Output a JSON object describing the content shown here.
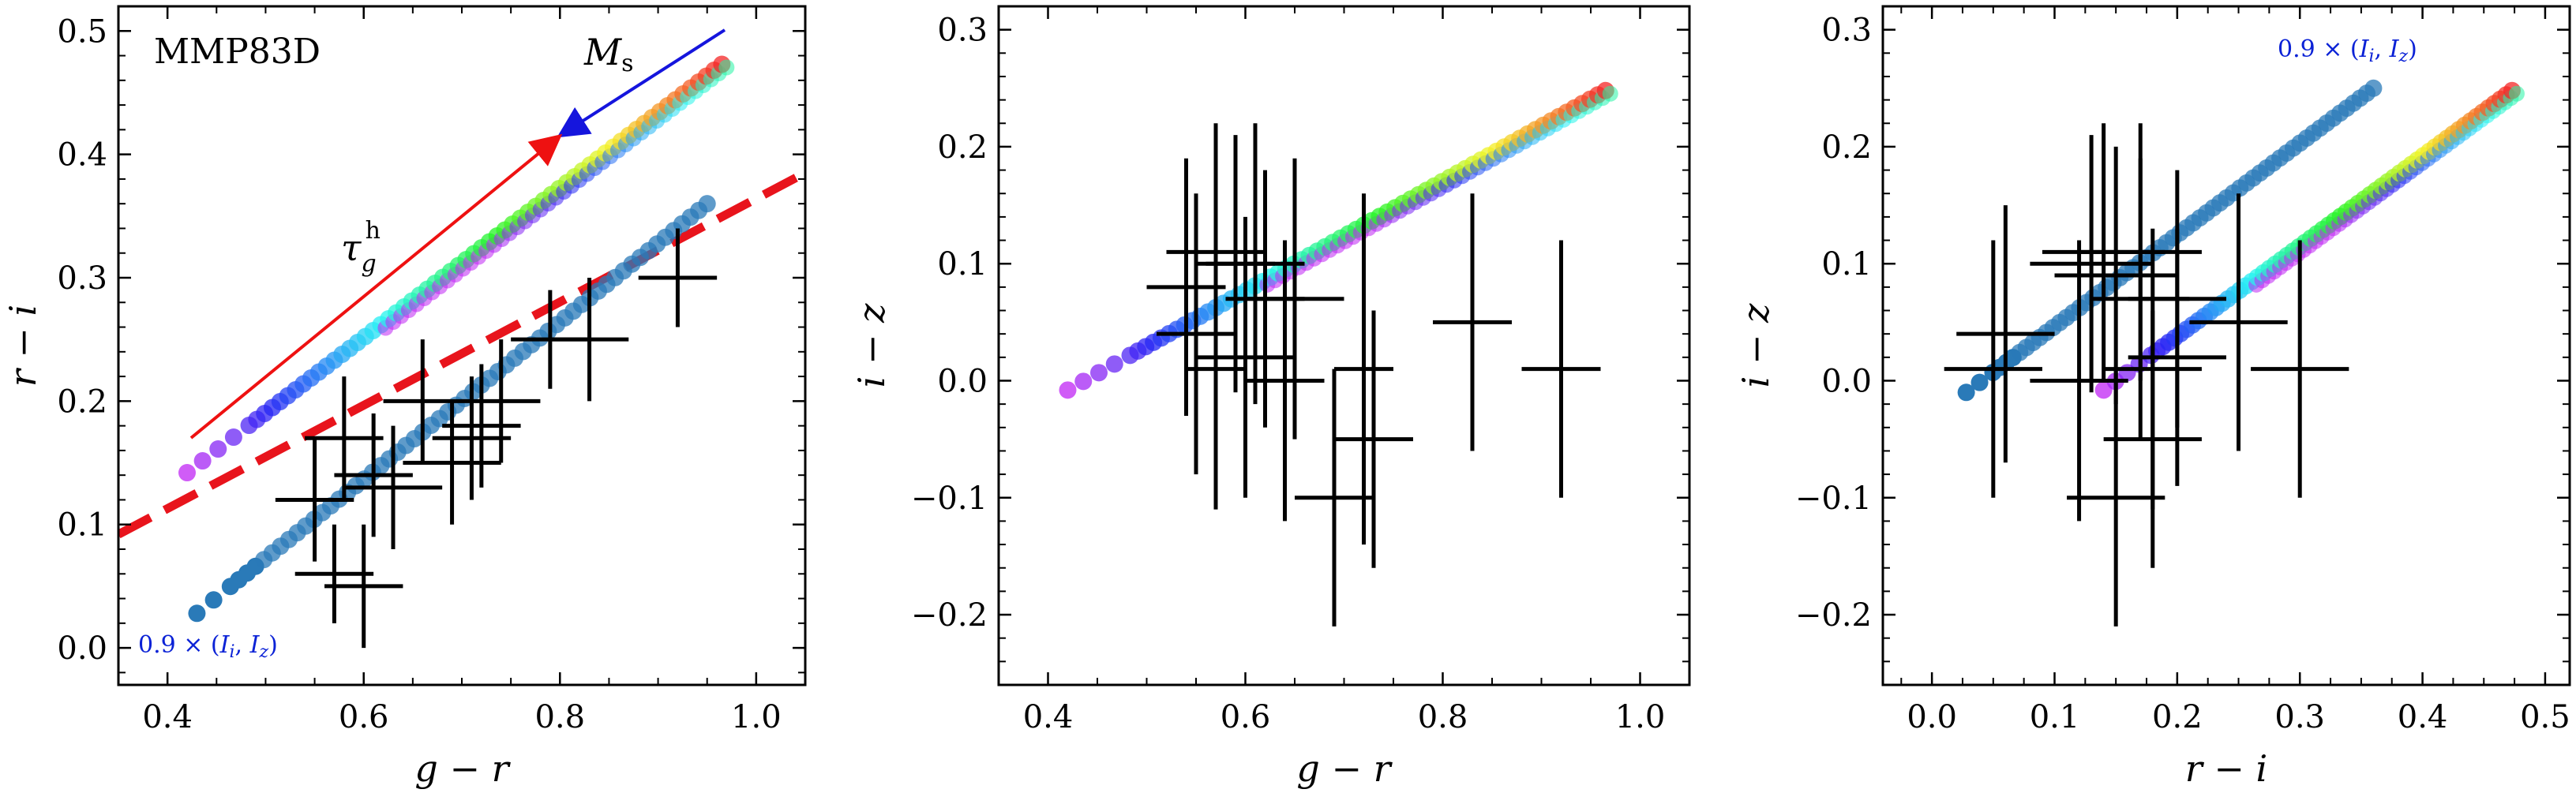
{
  "chart_data": [
    {
      "type": "scatter",
      "panel_tag": "MMP83D",
      "xlabel": "g − r",
      "ylabel": "r − i",
      "xlim": [
        0.35,
        1.05
      ],
      "ylim": [
        -0.03,
        0.52
      ],
      "xticks": [
        0.4,
        0.6,
        0.8,
        1.0
      ],
      "xtick_labels": [
        "0.4",
        "0.6",
        "0.8",
        "1.0"
      ],
      "yticks": [
        0.0,
        0.1,
        0.2,
        0.3,
        0.4,
        0.5
      ],
      "ytick_labels": [
        "0.0",
        "0.1",
        "0.2",
        "0.3",
        "0.4",
        "0.5"
      ],
      "grid": false,
      "annotations": {
        "note_blue": "0.9 × (I_i, I_z)",
        "arrow_ms_label": "M_s",
        "arrow_tau_label": "τ_g^h",
        "dashed_line": {
          "x": [
            0.35,
            1.05
          ],
          "y": [
            0.092,
            0.385
          ]
        }
      },
      "rainbow_band": {
        "x_start": 0.42,
        "x_end": 0.965,
        "y_start": 0.142,
        "y_end": 0.473
      },
      "blue_band": {
        "x_start": 0.43,
        "x_end": 0.95,
        "y_start": 0.028,
        "y_end": 0.36
      },
      "data_points": {
        "x": [
          0.57,
          0.6,
          0.55,
          0.58,
          0.61,
          0.63,
          0.66,
          0.69,
          0.72,
          0.71,
          0.74,
          0.83,
          0.79,
          0.92
        ],
        "y": [
          0.06,
          0.05,
          0.12,
          0.17,
          0.14,
          0.13,
          0.2,
          0.15,
          0.18,
          0.17,
          0.2,
          0.25,
          0.25,
          0.3
        ],
        "xerr": [
          0.04,
          0.04,
          0.04,
          0.04,
          0.04,
          0.05,
          0.04,
          0.05,
          0.04,
          0.04,
          0.04,
          0.04,
          0.04,
          0.04
        ],
        "yerr": [
          0.04,
          0.05,
          0.05,
          0.05,
          0.05,
          0.05,
          0.05,
          0.05,
          0.05,
          0.05,
          0.05,
          0.05,
          0.04,
          0.04
        ]
      }
    },
    {
      "type": "scatter",
      "xlabel": "g − r",
      "ylabel": "i − z",
      "xlim": [
        0.35,
        1.05
      ],
      "ylim": [
        -0.26,
        0.32
      ],
      "xticks": [
        0.4,
        0.6,
        0.8,
        1.0
      ],
      "xtick_labels": [
        "0.4",
        "0.6",
        "0.8",
        "1.0"
      ],
      "yticks": [
        -0.2,
        -0.1,
        0.0,
        0.1,
        0.2,
        0.3
      ],
      "ytick_labels": [
        "−0.2",
        "−0.1",
        "0.0",
        "0.1",
        "0.2",
        "0.3"
      ],
      "grid": false,
      "rainbow_band": {
        "x_start": 0.42,
        "x_end": 0.965,
        "y_start": -0.008,
        "y_end": 0.248
      },
      "data_points": {
        "x": [
          0.54,
          0.57,
          0.55,
          0.59,
          0.61,
          0.6,
          0.57,
          0.62,
          0.65,
          0.64,
          0.72,
          0.73,
          0.69,
          0.83,
          0.92
        ],
        "y": [
          0.08,
          0.11,
          0.04,
          0.1,
          0.1,
          0.02,
          0.01,
          0.07,
          0.07,
          0.0,
          0.01,
          -0.05,
          -0.1,
          0.05,
          0.01
        ],
        "xerr": [
          0.04,
          0.05,
          0.04,
          0.04,
          0.05,
          0.05,
          0.03,
          0.04,
          0.05,
          0.04,
          0.03,
          0.04,
          0.04,
          0.04,
          0.04
        ],
        "yerr": [
          0.11,
          0.11,
          0.12,
          0.11,
          0.12,
          0.12,
          0.12,
          0.11,
          0.12,
          0.12,
          0.15,
          0.11,
          0.11,
          0.11,
          0.11
        ]
      }
    },
    {
      "type": "scatter",
      "note_blue": "0.9 × (I_i, I_z)",
      "xlabel": "r − i",
      "ylabel": "i − z",
      "xlim": [
        -0.04,
        0.52
      ],
      "ylim": [
        -0.26,
        0.32
      ],
      "xticks": [
        0.0,
        0.1,
        0.2,
        0.3,
        0.4,
        0.5
      ],
      "xtick_labels": [
        "0.0",
        "0.1",
        "0.2",
        "0.3",
        "0.4",
        "0.5"
      ],
      "yticks": [
        -0.2,
        -0.1,
        0.0,
        0.1,
        0.2,
        0.3
      ],
      "ytick_labels": [
        "−0.2",
        "−0.1",
        "0.0",
        "0.1",
        "0.2",
        "0.3"
      ],
      "grid": false,
      "rainbow_band": {
        "x_start": 0.14,
        "x_end": 0.473,
        "y_start": -0.008,
        "y_end": 0.248
      },
      "blue_band": {
        "x_start": 0.028,
        "x_end": 0.36,
        "y_start": -0.01,
        "y_end": 0.25
      },
      "data_points": {
        "x": [
          0.06,
          0.05,
          0.13,
          0.14,
          0.15,
          0.12,
          0.17,
          0.17,
          0.2,
          0.18,
          0.18,
          0.25,
          0.3,
          0.2,
          0.15
        ],
        "y": [
          0.04,
          0.01,
          0.1,
          0.11,
          0.09,
          0.0,
          0.07,
          0.11,
          0.07,
          0.01,
          -0.05,
          0.05,
          0.01,
          0.02,
          -0.1
        ],
        "xerr": [
          0.04,
          0.04,
          0.05,
          0.05,
          0.05,
          0.04,
          0.04,
          0.05,
          0.04,
          0.04,
          0.04,
          0.04,
          0.04,
          0.04,
          0.04
        ],
        "yerr": [
          0.11,
          0.11,
          0.11,
          0.11,
          0.11,
          0.12,
          0.12,
          0.11,
          0.11,
          0.12,
          0.11,
          0.11,
          0.11,
          0.11,
          0.11
        ]
      }
    }
  ]
}
